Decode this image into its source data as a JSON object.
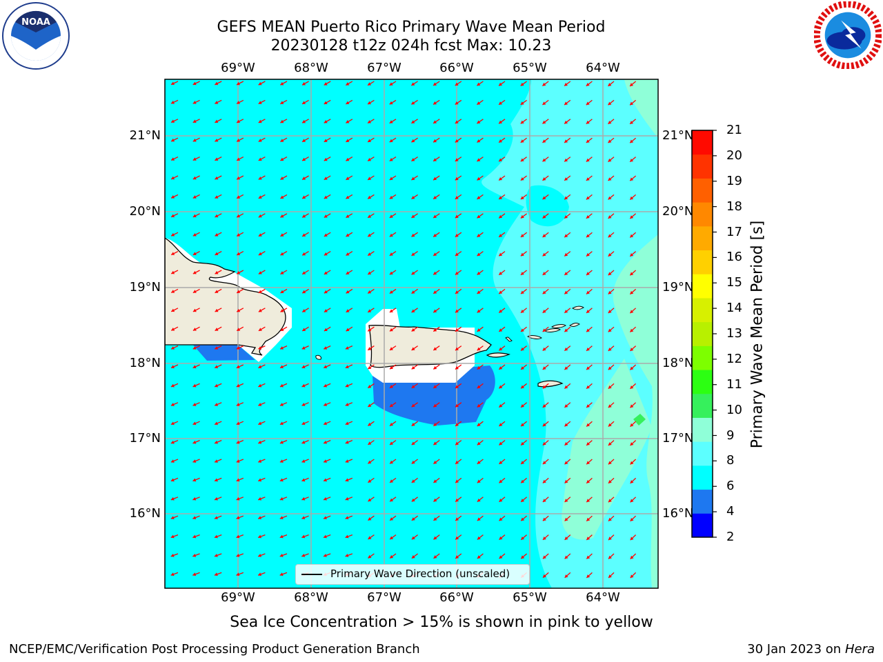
{
  "title": {
    "line1": "GEFS MEAN Puerto Rico Primary Wave Mean Period",
    "line2": "20230128 t12z 024h fcst   Max: 10.23"
  },
  "axes": {
    "longitudes": [
      "69°W",
      "68°W",
      "67°W",
      "66°W",
      "65°W",
      "64°W"
    ],
    "latitudes": [
      "21°N",
      "20°N",
      "19°N",
      "18°N",
      "17°N",
      "16°N"
    ]
  },
  "legend": {
    "label": "Primary Wave Direction (unscaled)"
  },
  "colorbar": {
    "label": "Primary Wave Mean Period [s]",
    "ticks": [
      "21",
      "20",
      "19",
      "18",
      "17",
      "16",
      "15",
      "14",
      "13",
      "12",
      "11",
      "10",
      "9",
      "8",
      "6",
      "4",
      "2"
    ],
    "colors": [
      "#0000ff",
      "#1e78f0",
      "#00ffff",
      "#5cffff",
      "#8fffd8",
      "#36f05c",
      "#2cff12",
      "#7dff00",
      "#b8f000",
      "#d7f000",
      "#ffff00",
      "#ffd000",
      "#ffaa00",
      "#ff8800",
      "#ff6000",
      "#ff3300",
      "#ff0a00"
    ]
  },
  "map": {
    "ocean_color": "#00ffff",
    "land_color": "#efecdc",
    "arrow_color": "#ff0000",
    "grid_color": "#aaaaaa"
  },
  "footer": {
    "note": "Sea Ice Concentration > 15% is shown in pink to yellow",
    "left": "NCEP/EMC/Verification Post Processing Product Generation Branch",
    "right_prefix": "30 Jan 2023 on",
    "right_host": "Hera"
  },
  "logos": {
    "noaa": "NOAA",
    "noaa_ring": "NATIONAL OCEANIC AND ATMOSPHERIC ADMINISTRATION",
    "nws_ring": "NATIONAL WEATHER SERVICE"
  }
}
